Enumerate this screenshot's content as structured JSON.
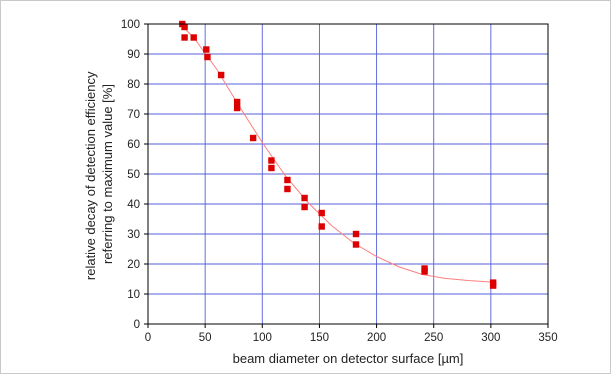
{
  "chart_data": {
    "type": "scatter",
    "title": "",
    "xlabel": "beam diameter on detector surface [µm]",
    "ylabel_lines": [
      "relative decay of detection efficiency",
      "referring to maximum value [%]"
    ],
    "xlim": [
      0,
      350
    ],
    "ylim": [
      0,
      100
    ],
    "xticks": [
      0,
      50,
      100,
      150,
      200,
      250,
      300,
      350
    ],
    "yticks": [
      0,
      10,
      20,
      30,
      40,
      50,
      60,
      70,
      80,
      90,
      100
    ],
    "grid": true,
    "legend": "none",
    "colors": {
      "points": "#dd0000",
      "fit_line": "#ff7f7f",
      "grid": "#5560d9",
      "axis": "#000000"
    },
    "series": [
      {
        "kind": "points",
        "x": [
          30,
          32,
          32,
          40,
          51,
          52,
          64,
          78,
          78,
          92,
          108,
          108,
          122,
          122,
          137,
          137,
          152,
          152,
          182,
          182,
          242,
          242,
          302,
          302
        ],
        "y": [
          100,
          99,
          95.5,
          95.5,
          91.5,
          89,
          83,
          74,
          72,
          62,
          54.5,
          52,
          48,
          45,
          42,
          39,
          37,
          32.5,
          30,
          26.5,
          18.5,
          17.5,
          13.8,
          12.8
        ]
      },
      {
        "kind": "fit",
        "x": [
          28,
          40,
          60,
          80,
          100,
          120,
          140,
          160,
          180,
          200,
          220,
          240,
          260,
          280,
          300
        ],
        "y": [
          100,
          95.5,
          85,
          72.5,
          60.5,
          49.5,
          40.5,
          33,
          27,
          22.5,
          19,
          16.5,
          15.2,
          14.5,
          14
        ]
      }
    ]
  }
}
